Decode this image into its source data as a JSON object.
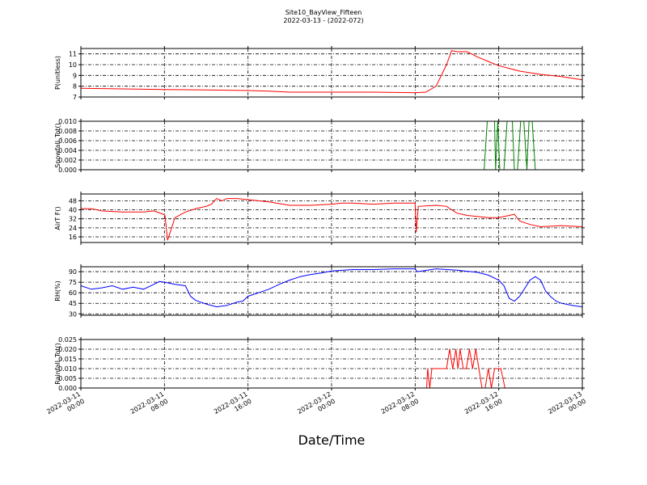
{
  "title": "Site10_BayView_Fifteen",
  "subtitle": "2022-03-13 - (2022-072)",
  "xlabel": "Date/Time",
  "x_ticks": [
    {
      "line1": "2022-03-11",
      "line2": "00:00",
      "h": 0
    },
    {
      "line1": "2022-03-11",
      "line2": "08:00",
      "h": 8
    },
    {
      "line1": "2022-03-11",
      "line2": "16:00",
      "h": 16
    },
    {
      "line1": "2022-03-12",
      "line2": "00:00",
      "h": 24
    },
    {
      "line1": "2022-03-12",
      "line2": "08:00",
      "h": 32
    },
    {
      "line1": "2022-03-12",
      "line2": "16:00",
      "h": 40
    },
    {
      "line1": "2022-03-13",
      "line2": "00:00",
      "h": 48
    }
  ],
  "chart_data": [
    {
      "type": "line",
      "ylabel": "P(unitless)",
      "ylim": [
        7,
        11.5
      ],
      "yticks": [
        7,
        8,
        9,
        10,
        11
      ],
      "tick_labels": [
        "7",
        "8",
        "9",
        "10",
        "11"
      ],
      "grid": true,
      "color": "#ff0000",
      "x": [
        0,
        4,
        8,
        12,
        16,
        18,
        20,
        24,
        28,
        32,
        33,
        34,
        35,
        35.5,
        36,
        37,
        38,
        39,
        40,
        42,
        44,
        46,
        48
      ],
      "y": [
        7.8,
        7.75,
        7.7,
        7.65,
        7.6,
        7.55,
        7.45,
        7.45,
        7.45,
        7.4,
        7.45,
        8.0,
        10.0,
        11.3,
        11.2,
        11.2,
        10.7,
        10.3,
        9.9,
        9.4,
        9.1,
        8.9,
        8.6
      ]
    },
    {
      "type": "line",
      "ylabel": "Snowfall_Tot()",
      "ylim": [
        0,
        0.01
      ],
      "yticks": [
        0,
        0.002,
        0.004,
        0.006,
        0.008,
        0.01
      ],
      "tick_labels": [
        "0.000",
        "0.002",
        "0.004",
        "0.006",
        "0.008",
        "0.010"
      ],
      "grid": true,
      "color": "#008000",
      "x": [
        0,
        38.6,
        38.9,
        39.6,
        39.7,
        39.9,
        40.1,
        40.5,
        40.8,
        41.3,
        41.5,
        41.8,
        42.1,
        42.4,
        42.7,
        42.9,
        43.2,
        43.5,
        43.8,
        48
      ],
      "y": [
        0,
        0,
        0.01,
        0.01,
        0,
        0.01,
        0,
        0,
        0.01,
        0.01,
        0,
        0,
        0.01,
        0.01,
        0,
        0.01,
        0.01,
        0,
        0,
        0
      ]
    },
    {
      "type": "line",
      "ylabel": "AirT F()",
      "ylim": [
        11,
        54
      ],
      "yticks": [
        16,
        24,
        32,
        40,
        48
      ],
      "tick_labels": [
        "16",
        "24",
        "32",
        "40",
        "48"
      ],
      "grid": true,
      "color": "#ff0000",
      "x": [
        0,
        1,
        2,
        4,
        5,
        6,
        7,
        7.9,
        8.05,
        8.3,
        9,
        10,
        11,
        12,
        12.5,
        13,
        13.5,
        14,
        15,
        16,
        17,
        18,
        20,
        22,
        24,
        25,
        26,
        28,
        30,
        32,
        32.1,
        32.3,
        34,
        35,
        36,
        37,
        38,
        39,
        40,
        41,
        41.5,
        42,
        43,
        44,
        46,
        48
      ],
      "y": [
        41,
        41,
        39,
        38,
        38,
        38,
        39,
        36,
        35,
        13,
        33,
        38,
        41,
        43,
        45,
        50,
        48,
        50,
        50,
        49,
        48,
        47,
        44,
        44,
        45,
        46,
        46,
        45,
        46,
        46,
        20,
        43,
        44,
        43,
        37,
        35,
        34,
        33,
        33,
        35,
        36,
        30,
        27,
        25,
        26,
        25
      ]
    },
    {
      "type": "line",
      "ylabel": "RH(%)",
      "ylim": [
        28,
        97
      ],
      "yticks": [
        30,
        45,
        60,
        75,
        90
      ],
      "tick_labels": [
        "30",
        "45",
        "60",
        "75",
        "90"
      ],
      "grid": true,
      "color": "#0000ff",
      "x": [
        0,
        1,
        2,
        3,
        4,
        5,
        6,
        7,
        7.5,
        8,
        9,
        10,
        10.5,
        11,
        12,
        13,
        14,
        15,
        15.5,
        16,
        17,
        18,
        19,
        20,
        21,
        22,
        23,
        24,
        26,
        28,
        30,
        32,
        32.2,
        34,
        36,
        38,
        39,
        40,
        40.5,
        41,
        41.5,
        42,
        43,
        43.5,
        44,
        44.5,
        45,
        45.5,
        46,
        47,
        48
      ],
      "y": [
        70,
        65,
        67,
        70,
        65,
        68,
        65,
        72,
        76,
        75,
        72,
        70,
        55,
        49,
        44,
        40,
        42,
        47,
        48,
        55,
        60,
        65,
        72,
        78,
        83,
        86,
        88,
        91,
        93,
        93,
        94,
        94,
        90,
        94,
        92,
        89,
        85,
        78,
        70,
        52,
        48,
        55,
        78,
        83,
        78,
        62,
        54,
        48,
        45,
        42,
        40
      ]
    },
    {
      "type": "line",
      "ylabel": "Rainfall_Tot()",
      "ylim": [
        0,
        0.025
      ],
      "yticks": [
        0,
        0.005,
        0.01,
        0.015,
        0.02,
        0.025
      ],
      "tick_labels": [
        "0.000",
        "0.005",
        "0.010",
        "0.015",
        "0.020",
        "0.025"
      ],
      "grid": true,
      "color": "#ff0000",
      "x": [
        0,
        33.1,
        33.2,
        33.4,
        33.6,
        34.0,
        35.0,
        35.3,
        35.6,
        35.9,
        36.1,
        36.3,
        36.6,
        36.9,
        37.2,
        37.5,
        37.8,
        38.1,
        38.4,
        38.7,
        39.0,
        39.3,
        39.6,
        39.8,
        40.0,
        40.2,
        40.6,
        40.8,
        48
      ],
      "y": [
        0,
        0,
        0.01,
        0,
        0.01,
        0.01,
        0.01,
        0.02,
        0.01,
        0.02,
        0.01,
        0.02,
        0.01,
        0.01,
        0.02,
        0.01,
        0.02,
        0.01,
        0,
        0,
        0.01,
        0,
        0.01,
        0.01,
        0.01,
        0.01,
        0,
        0,
        0
      ]
    }
  ]
}
